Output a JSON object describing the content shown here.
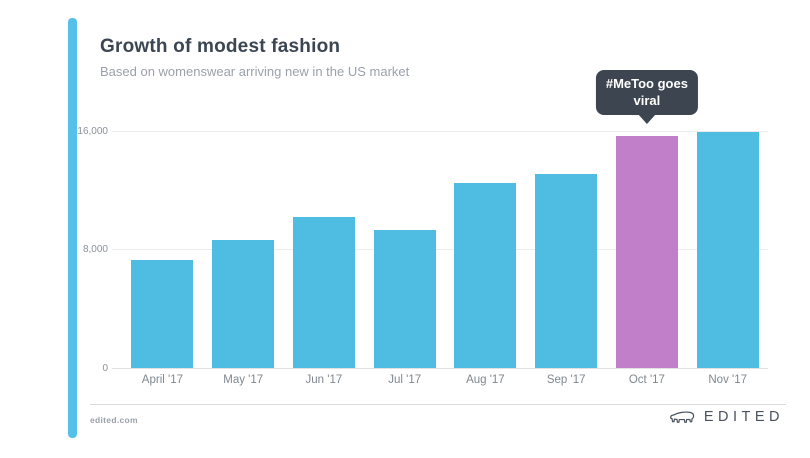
{
  "header": {
    "title": "Growth of modest fashion",
    "subtitle": "Based on womenswear arriving new in the US market"
  },
  "chart_data": {
    "type": "bar",
    "categories": [
      "April '17",
      "May '17",
      "Jun '17",
      "Jul '17",
      "Aug '17",
      "Sep '17",
      "Oct '17",
      "Nov '17"
    ],
    "values": [
      7300,
      8650,
      10200,
      9300,
      12500,
      13100,
      15600,
      15900
    ],
    "title": "Growth of modest fashion",
    "subtitle": "Based on womenswear arriving new in the US market",
    "xlabel": "",
    "ylabel": "",
    "ylim": [
      0,
      16000
    ],
    "yticks": [
      0,
      8000,
      16000
    ],
    "ytick_labels": [
      "0",
      "8,000",
      "16,000"
    ],
    "grid": true,
    "bar_color": "#4FBCE2",
    "highlight_index": 6,
    "highlight_color": "#C17EC9",
    "annotation": {
      "text": "#MeToo goes viral",
      "lines": [
        "#MeToo goes",
        "viral"
      ],
      "target": "Oct '17",
      "bg_color": "#3D4551"
    }
  },
  "colors": {
    "accent_stripe": "#56C0E8",
    "title_text": "#3C4652",
    "subtitle_text": "#9BA1A9"
  },
  "footer": {
    "source": "edited.com",
    "brand": "EDITED"
  }
}
